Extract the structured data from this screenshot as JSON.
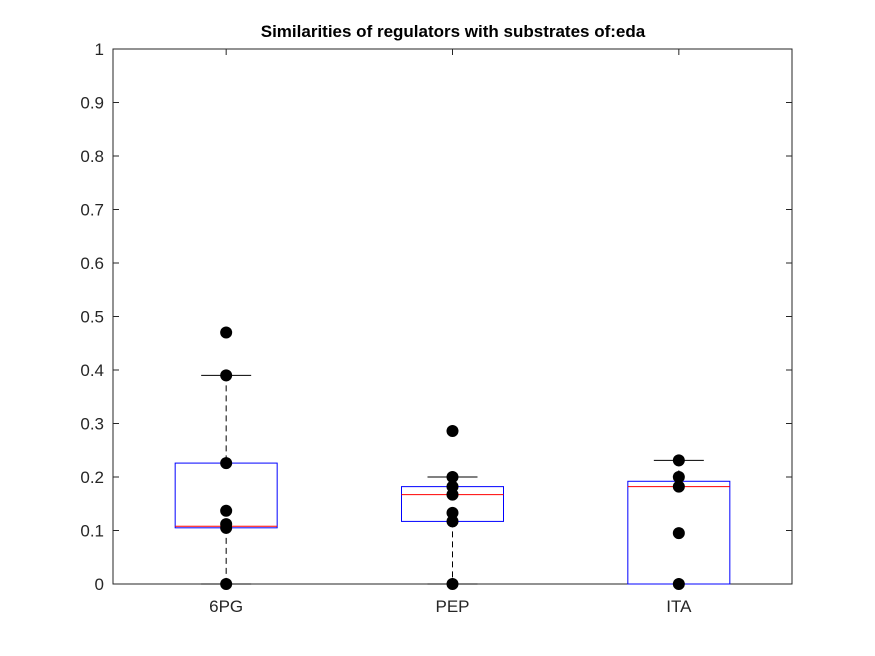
{
  "chart_data": {
    "type": "box",
    "title": "Similarities of regulators with substrates of:eda",
    "xlabel": "",
    "ylabel": "",
    "ylim": [
      0,
      1
    ],
    "yticks": [
      "0",
      "0.1",
      "0.2",
      "0.3",
      "0.4",
      "0.5",
      "0.6",
      "0.7",
      "0.8",
      "0.9",
      "1"
    ],
    "categories": [
      "6PG",
      "PEP",
      "ITA"
    ],
    "boxes": [
      {
        "category": "6PG",
        "q1": 0.105,
        "median": 0.108,
        "q3": 0.226,
        "whisker_low": 0,
        "whisker_high": 0.39,
        "points": [
          0.47,
          0.39,
          0.226,
          0.137,
          0.112,
          0.105,
          0
        ]
      },
      {
        "category": "PEP",
        "q1": 0.117,
        "median": 0.167,
        "q3": 0.182,
        "whisker_low": 0,
        "whisker_high": 0.2,
        "points": [
          0.286,
          0.2,
          0.182,
          0.167,
          0.133,
          0.117,
          0
        ]
      },
      {
        "category": "ITA",
        "q1": 0,
        "median": 0.182,
        "q3": 0.192,
        "whisker_low": 0,
        "whisker_high": 0.231,
        "points": [
          0.231,
          0.2,
          0.182,
          0.095,
          0
        ]
      }
    ],
    "colors": {
      "box": "#0000ff",
      "median": "#ff0000",
      "whisker": "#000000",
      "point": "#000000",
      "axis": "#262626"
    },
    "grid": false,
    "legend": "none"
  }
}
